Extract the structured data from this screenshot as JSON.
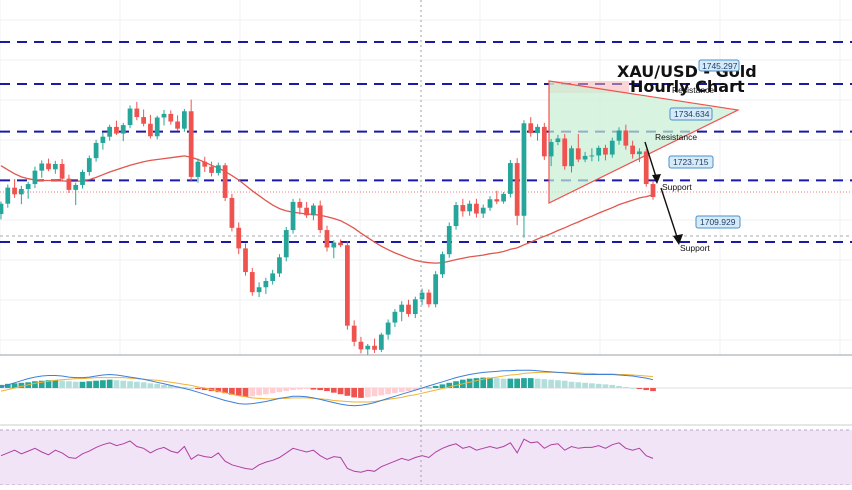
{
  "chart_data": {
    "type": "candlestick",
    "title_line1": "XAU/USD - Gold",
    "title_line2": "Hourly Chart",
    "colors": {
      "bull": "#26a69a",
      "bear": "#ef5350",
      "sma": "#e0574f",
      "level_line": "#1a1aa6",
      "triangle_fill": "#c8efd4",
      "triangle_edge": "#ef5350",
      "label_bg": "#d6eaf8",
      "label_border": "#4a90c8",
      "macd_line": "#3d7fd9",
      "signal_line": "#f2b233",
      "rsi_bg": "#f1e4f7",
      "rsi_line": "#b03fa0"
    },
    "levels": [
      1745.297,
      1734.634,
      1723.715,
      1709.929
    ],
    "price_labels": [
      {
        "value": "1745.297",
        "tag": "Resistance"
      },
      {
        "value": "1734.634",
        "tag": "Resistance"
      },
      {
        "value": "1723.715",
        "tag": "Support"
      },
      {
        "value": "1709.929",
        "tag": "Support"
      }
    ],
    "candles_ohlc": [
      [
        1716.2,
        1719.0,
        1715.0,
        1718.5
      ],
      [
        1718.5,
        1722.8,
        1717.6,
        1722.1
      ],
      [
        1722.1,
        1724.0,
        1719.8,
        1720.6
      ],
      [
        1720.6,
        1722.5,
        1718.4,
        1721.8
      ],
      [
        1721.8,
        1723.4,
        1719.6,
        1722.9
      ],
      [
        1722.9,
        1726.8,
        1722.0,
        1725.9
      ],
      [
        1725.9,
        1728.2,
        1724.3,
        1727.5
      ],
      [
        1727.5,
        1728.6,
        1725.8,
        1726.2
      ],
      [
        1726.2,
        1728.1,
        1725.2,
        1727.4
      ],
      [
        1727.4,
        1728.5,
        1723.6,
        1724.1
      ],
      [
        1724.1,
        1725.0,
        1720.9,
        1721.6
      ],
      [
        1721.6,
        1723.2,
        1718.2,
        1722.7
      ],
      [
        1722.7,
        1726.1,
        1721.9,
        1725.6
      ],
      [
        1725.6,
        1729.3,
        1724.8,
        1728.7
      ],
      [
        1728.7,
        1732.8,
        1727.9,
        1732.1
      ],
      [
        1732.1,
        1734.4,
        1730.6,
        1733.5
      ],
      [
        1733.5,
        1736.2,
        1732.6,
        1735.7
      ],
      [
        1735.7,
        1737.1,
        1733.9,
        1734.2
      ],
      [
        1734.2,
        1736.6,
        1732.5,
        1736.1
      ],
      [
        1736.1,
        1740.5,
        1735.4,
        1739.8
      ],
      [
        1739.8,
        1741.3,
        1737.2,
        1737.9
      ],
      [
        1737.9,
        1739.6,
        1735.8,
        1736.4
      ],
      [
        1736.4,
        1738.4,
        1733.1,
        1733.6
      ],
      [
        1733.6,
        1738.2,
        1732.9,
        1737.8
      ],
      [
        1737.8,
        1739.5,
        1736.0,
        1738.6
      ],
      [
        1738.6,
        1739.4,
        1736.2,
        1736.9
      ],
      [
        1736.9,
        1738.3,
        1734.8,
        1735.3
      ],
      [
        1735.3,
        1739.7,
        1734.6,
        1739.2
      ],
      [
        1739.2,
        1741.8,
        1723.4,
        1724.5
      ],
      [
        1724.5,
        1728.6,
        1723.2,
        1727.9
      ],
      [
        1727.9,
        1729.0,
        1725.6,
        1726.8
      ],
      [
        1726.8,
        1727.9,
        1724.6,
        1725.4
      ],
      [
        1725.4,
        1727.7,
        1724.8,
        1727.1
      ],
      [
        1727.1,
        1727.6,
        1719.1,
        1719.8
      ],
      [
        1719.8,
        1720.7,
        1712.3,
        1713.1
      ],
      [
        1713.1,
        1714.3,
        1707.2,
        1708.5
      ],
      [
        1708.5,
        1709.6,
        1702.4,
        1703.2
      ],
      [
        1703.2,
        1704.1,
        1697.9,
        1698.7
      ],
      [
        1698.7,
        1700.9,
        1697.6,
        1699.8
      ],
      [
        1699.8,
        1701.9,
        1698.3,
        1701.2
      ],
      [
        1701.2,
        1703.7,
        1700.4,
        1702.9
      ],
      [
        1702.9,
        1707.2,
        1702.1,
        1706.5
      ],
      [
        1706.5,
        1713.3,
        1705.6,
        1712.6
      ],
      [
        1712.6,
        1719.6,
        1711.8,
        1718.9
      ],
      [
        1718.9,
        1719.7,
        1716.1,
        1717.6
      ],
      [
        1717.6,
        1718.9,
        1715.3,
        1715.9
      ],
      [
        1715.9,
        1718.6,
        1714.8,
        1718.1
      ],
      [
        1718.1,
        1719.2,
        1711.9,
        1712.6
      ],
      [
        1712.6,
        1713.6,
        1707.8,
        1708.7
      ],
      [
        1708.7,
        1710.3,
        1706.3,
        1709.8
      ],
      [
        1709.8,
        1710.5,
        1708.8,
        1709.2
      ],
      [
        1709.2,
        1710.1,
        1690.3,
        1691.2
      ],
      [
        1691.2,
        1692.4,
        1686.6,
        1687.6
      ],
      [
        1687.6,
        1688.7,
        1685.0,
        1685.9
      ],
      [
        1685.9,
        1687.1,
        1684.6,
        1686.7
      ],
      [
        1686.7,
        1688.3,
        1685.1,
        1685.8
      ],
      [
        1685.8,
        1689.6,
        1685.3,
        1689.2
      ],
      [
        1689.2,
        1692.6,
        1688.1,
        1691.9
      ],
      [
        1691.9,
        1694.9,
        1690.9,
        1694.3
      ],
      [
        1694.3,
        1696.7,
        1692.2,
        1695.9
      ],
      [
        1695.9,
        1697.0,
        1693.2,
        1693.8
      ],
      [
        1693.8,
        1697.7,
        1692.9,
        1697.1
      ],
      [
        1697.1,
        1699.5,
        1695.8,
        1698.6
      ],
      [
        1698.6,
        1699.3,
        1695.3,
        1696.0
      ],
      [
        1696.0,
        1703.4,
        1695.3,
        1702.7
      ],
      [
        1702.7,
        1707.8,
        1701.9,
        1707.2
      ],
      [
        1707.2,
        1714.3,
        1706.4,
        1713.5
      ],
      [
        1713.5,
        1718.9,
        1712.7,
        1718.2
      ],
      [
        1718.2,
        1719.6,
        1715.6,
        1716.8
      ],
      [
        1716.8,
        1719.2,
        1715.8,
        1718.5
      ],
      [
        1718.5,
        1719.6,
        1715.4,
        1716.3
      ],
      [
        1716.3,
        1718.3,
        1715.3,
        1717.6
      ],
      [
        1717.6,
        1720.2,
        1716.9,
        1719.5
      ],
      [
        1719.5,
        1721.4,
        1718.4,
        1719.0
      ],
      [
        1719.0,
        1721.1,
        1718.5,
        1720.7
      ],
      [
        1720.7,
        1728.3,
        1719.9,
        1727.6
      ],
      [
        1727.6,
        1728.7,
        1713.7,
        1715.8
      ],
      [
        1715.8,
        1737.2,
        1710.9,
        1736.5
      ],
      [
        1736.5,
        1737.9,
        1733.5,
        1734.3
      ],
      [
        1734.3,
        1736.3,
        1732.6,
        1735.7
      ],
      [
        1735.7,
        1736.6,
        1728.3,
        1729.1
      ],
      [
        1729.1,
        1733.0,
        1726.9,
        1732.3
      ],
      [
        1732.3,
        1733.9,
        1731.6,
        1733.1
      ],
      [
        1733.1,
        1734.1,
        1726.1,
        1726.9
      ],
      [
        1726.9,
        1731.5,
        1725.5,
        1730.9
      ],
      [
        1730.9,
        1734.1,
        1727.8,
        1728.4
      ],
      [
        1728.4,
        1730.1,
        1727.8,
        1729.2
      ],
      [
        1729.2,
        1730.9,
        1728.0,
        1729.3
      ],
      [
        1729.3,
        1731.5,
        1728.0,
        1731.0
      ],
      [
        1731.0,
        1731.7,
        1728.2,
        1729.5
      ],
      [
        1729.5,
        1733.3,
        1728.8,
        1732.6
      ],
      [
        1732.6,
        1735.6,
        1731.7,
        1734.9
      ],
      [
        1734.9,
        1736.2,
        1730.6,
        1731.5
      ],
      [
        1731.5,
        1732.6,
        1728.6,
        1729.6
      ],
      [
        1729.6,
        1730.9,
        1727.8,
        1730.2
      ],
      [
        1730.2,
        1730.7,
        1722.3,
        1722.9
      ],
      [
        1722.9,
        1723.6,
        1719.4,
        1720.0
      ]
    ],
    "sma_values": [
      1727.0,
      1726.1,
      1725.2,
      1724.5,
      1724.1,
      1723.8,
      1723.7,
      1723.7,
      1723.7,
      1723.6,
      1723.5,
      1723.5,
      1723.6,
      1723.9,
      1724.4,
      1725.0,
      1725.6,
      1726.1,
      1726.6,
      1727.1,
      1727.5,
      1727.9,
      1728.2,
      1728.4,
      1728.6,
      1728.8,
      1729.0,
      1729.2,
      1728.9,
      1728.4,
      1727.8,
      1727.1,
      1726.5,
      1725.7,
      1724.8,
      1723.8,
      1722.6,
      1721.4,
      1720.3,
      1719.2,
      1718.2,
      1717.4,
      1716.9,
      1716.6,
      1716.4,
      1716.2,
      1716.1,
      1715.9,
      1715.6,
      1715.2,
      1714.7,
      1713.9,
      1713.0,
      1711.9,
      1710.9,
      1709.9,
      1709.0,
      1708.2,
      1707.5,
      1706.9,
      1706.3,
      1705.8,
      1705.5,
      1705.3,
      1705.2,
      1705.3,
      1705.6,
      1706.0,
      1706.3,
      1706.6,
      1706.8,
      1707.0,
      1707.3,
      1707.5,
      1707.8,
      1708.3,
      1708.6,
      1709.3,
      1709.9,
      1710.6,
      1711.2,
      1711.8,
      1712.5,
      1713.1,
      1713.8,
      1714.4,
      1715.1,
      1715.7,
      1716.4,
      1717.0,
      1717.6,
      1718.3,
      1718.8,
      1719.3,
      1719.8,
      1720.1,
      1720.5
    ],
    "macd_hist": [
      0.6,
      0.8,
      0.9,
      1.0,
      1.1,
      1.3,
      1.4,
      1.5,
      1.5,
      1.4,
      1.3,
      1.2,
      1.2,
      1.3,
      1.4,
      1.5,
      1.6,
      1.5,
      1.4,
      1.3,
      1.2,
      1.1,
      0.9,
      0.8,
      0.6,
      0.5,
      0.3,
      0.2,
      0.0,
      -0.2,
      -0.4,
      -0.6,
      -0.8,
      -1.0,
      -1.3,
      -1.5,
      -1.7,
      -1.6,
      -1.4,
      -1.2,
      -1.0,
      -0.8,
      -0.6,
      -0.4,
      -0.3,
      -0.2,
      -0.3,
      -0.4,
      -0.6,
      -0.9,
      -1.2,
      -1.5,
      -1.8,
      -1.9,
      -1.8,
      -1.6,
      -1.4,
      -1.2,
      -1.0,
      -0.8,
      -0.6,
      -0.4,
      -0.2,
      0.1,
      0.4,
      0.7,
      1.0,
      1.3,
      1.6,
      1.8,
      1.9,
      2.0,
      2.0,
      1.9,
      1.8,
      1.8,
      1.8,
      1.9,
      1.9,
      1.8,
      1.7,
      1.6,
      1.5,
      1.4,
      1.2,
      1.1,
      1.0,
      0.9,
      0.8,
      0.7,
      0.6,
      0.4,
      0.2,
      0.0,
      -0.2,
      -0.4,
      -0.6
    ],
    "macd_line": [
      0.2,
      0.6,
      1.0,
      1.4,
      1.8,
      2.1,
      2.3,
      2.4,
      2.4,
      2.3,
      2.1,
      2.0,
      2.0,
      2.1,
      2.3,
      2.5,
      2.6,
      2.5,
      2.3,
      2.1,
      1.9,
      1.7,
      1.4,
      1.1,
      0.8,
      0.5,
      0.2,
      -0.1,
      -0.4,
      -0.8,
      -1.2,
      -1.6,
      -2.0,
      -2.4,
      -2.7,
      -3.0,
      -3.1,
      -3.0,
      -2.8,
      -2.6,
      -2.3,
      -2.0,
      -1.8,
      -1.6,
      -1.6,
      -1.7,
      -1.9,
      -2.2,
      -2.5,
      -2.8,
      -3.1,
      -3.3,
      -3.4,
      -3.3,
      -3.1,
      -2.8,
      -2.4,
      -2.0,
      -1.6,
      -1.2,
      -0.8,
      -0.4,
      0.0,
      0.4,
      0.8,
      1.2,
      1.6,
      2.0,
      2.3,
      2.6,
      2.8,
      3.0,
      3.1,
      3.2,
      3.3,
      3.3,
      3.4,
      3.4,
      3.4,
      3.3,
      3.2,
      3.1,
      3.0,
      2.9,
      2.8,
      2.7,
      2.6,
      2.6,
      2.6,
      2.6,
      2.6,
      2.5,
      2.4,
      2.3,
      2.1,
      1.9,
      1.6
    ],
    "signal_line": [
      -0.6,
      -0.3,
      0.0,
      0.3,
      0.6,
      0.9,
      1.1,
      1.3,
      1.5,
      1.6,
      1.7,
      1.8,
      1.8,
      1.9,
      2.0,
      2.0,
      2.0,
      2.0,
      2.0,
      1.9,
      1.8,
      1.7,
      1.6,
      1.5,
      1.3,
      1.1,
      0.9,
      0.7,
      0.5,
      0.2,
      0.0,
      -0.3,
      -0.6,
      -0.9,
      -1.2,
      -1.5,
      -1.7,
      -1.9,
      -2.0,
      -2.1,
      -2.1,
      -2.0,
      -2.0,
      -1.9,
      -1.9,
      -1.9,
      -2.0,
      -2.1,
      -2.2,
      -2.4,
      -2.5,
      -2.6,
      -2.7,
      -2.7,
      -2.7,
      -2.6,
      -2.4,
      -2.2,
      -2.0,
      -1.8,
      -1.5,
      -1.3,
      -1.0,
      -0.7,
      -0.4,
      -0.1,
      0.2,
      0.5,
      0.8,
      1.1,
      1.4,
      1.7,
      1.9,
      2.1,
      2.3,
      2.5,
      2.6,
      2.8,
      2.9,
      3.0,
      3.0,
      3.0,
      3.0,
      3.0,
      2.9,
      2.9,
      2.8,
      2.8,
      2.7,
      2.7,
      2.7,
      2.6,
      2.6,
      2.5,
      2.4,
      2.3,
      2.2
    ],
    "rsi": [
      52,
      55,
      58,
      54,
      57,
      60,
      56,
      53,
      58,
      55,
      50,
      49,
      54,
      57,
      61,
      64,
      66,
      63,
      65,
      68,
      62,
      60,
      55,
      59,
      61,
      57,
      55,
      62,
      48,
      53,
      51,
      50,
      55,
      46,
      42,
      40,
      38,
      37,
      42,
      45,
      47,
      50,
      55,
      60,
      58,
      56,
      58,
      52,
      48,
      51,
      50,
      38,
      35,
      34,
      36,
      35,
      40,
      43,
      46,
      49,
      47,
      50,
      52,
      50,
      56,
      60,
      63,
      65,
      60,
      62,
      58,
      60,
      62,
      60,
      62,
      66,
      55,
      70,
      66,
      67,
      60,
      64,
      65,
      58,
      62,
      60,
      61,
      61,
      63,
      60,
      64,
      66,
      60,
      58,
      60,
      52,
      49
    ]
  }
}
